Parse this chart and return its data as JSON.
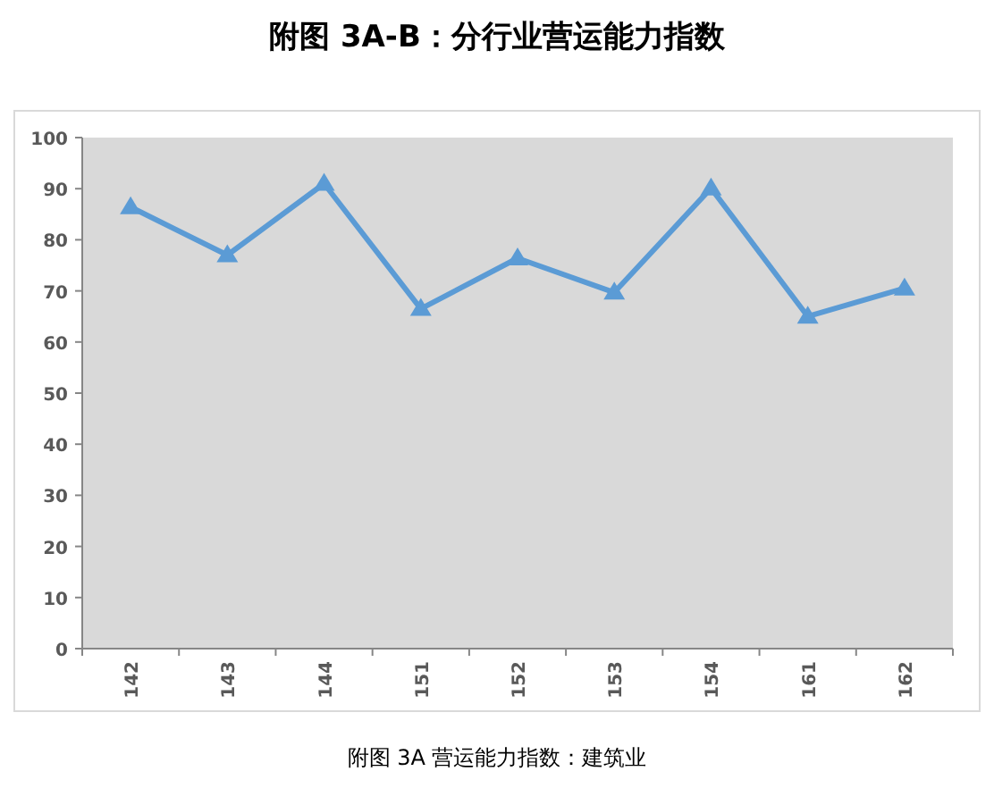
{
  "chart_data": {
    "type": "line",
    "title": "附图 3A-B：分行业营运能力指数",
    "categories": [
      "142",
      "143",
      "144",
      "151",
      "152",
      "153",
      "154",
      "161",
      "162"
    ],
    "series": [
      {
        "color": "#5b9bd5",
        "values": [
          86.4,
          77.0,
          91.0,
          66.5,
          76.4,
          69.7,
          90.1,
          65.0,
          70.5
        ]
      }
    ],
    "ylim": [
      0,
      100
    ],
    "yticks": [
      0,
      10,
      20,
      30,
      40,
      50,
      60,
      70,
      80,
      90,
      100
    ],
    "marker": "triangle",
    "line_style": "solid",
    "grid": false,
    "annotations": [
      "附图 3A 营运能力指数：建筑业"
    ]
  }
}
